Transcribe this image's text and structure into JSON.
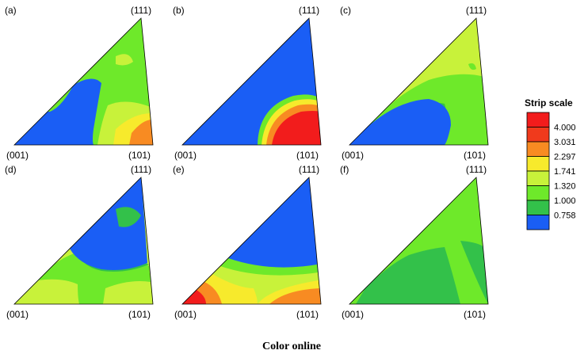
{
  "caption": "Color online",
  "colors": {
    "blue": "#1a5ef5",
    "darkgreen": "#33c14a",
    "ltgreen": "#6ee92a",
    "yelgreen": "#c8f23a",
    "yellow": "#f7ea2c",
    "orange": "#f88b22",
    "red": "#f21c1c"
  },
  "chart_data": {
    "type": "heatmap",
    "description_kind": "inverse pole figure intensity (strip scale)",
    "scale": {
      "title": "Strip scale",
      "levels": [
        "4.000",
        "3.031",
        "2.297",
        "1.741",
        "1.320",
        "1.000",
        "0.758"
      ],
      "colors": [
        "#f21c1c",
        "#f03a1c",
        "#f88b22",
        "#f7ea2c",
        "#c8f23a",
        "#6ee92a",
        "#33c14a",
        "#1a5ef5"
      ]
    },
    "corner_labels": {
      "top": "(111)",
      "left": "(001)",
      "right": "(101)"
    },
    "panels": [
      {
        "label": "(a)",
        "max_region": "(101)",
        "min_region": "center-left"
      },
      {
        "label": "(b)",
        "max_region": "(101)",
        "min_region": "(111)/(001)"
      },
      {
        "label": "(c)",
        "max_region": "(111)",
        "min_region": "(001)"
      },
      {
        "label": "(d)",
        "max_region": "(001)/(101)",
        "min_region": "(111)"
      },
      {
        "label": "(e)",
        "max_region": "(001)",
        "min_region": "(111)"
      },
      {
        "label": "(f)",
        "max_region": "uniform",
        "min_region": "uniform"
      }
    ]
  }
}
